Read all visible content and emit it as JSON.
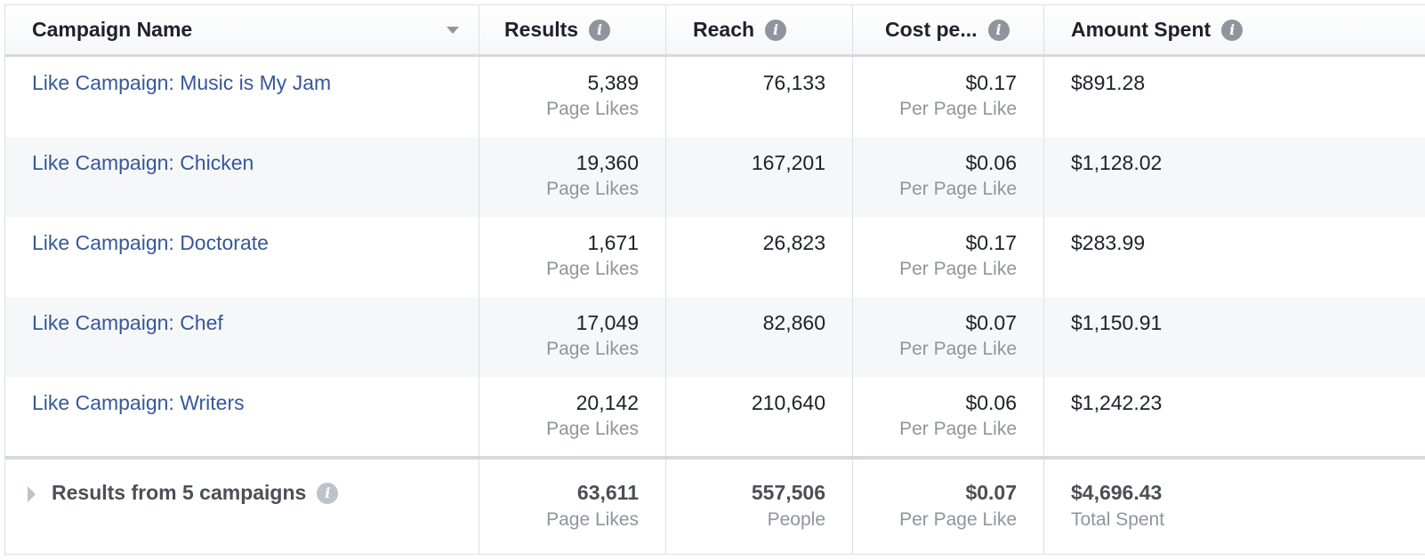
{
  "columns": {
    "campaign_name": "Campaign Name",
    "results": "Results",
    "reach": "Reach",
    "cost_per": "Cost pe...",
    "amount_spent": "Amount Spent"
  },
  "rows": [
    {
      "name": "Like Campaign: Music is My Jam",
      "results": "5,389",
      "results_unit": "Page Likes",
      "reach": "76,133",
      "cost": "$0.17",
      "cost_unit": "Per Page Like",
      "amount": "$891.28"
    },
    {
      "name": "Like Campaign: Chicken",
      "results": "19,360",
      "results_unit": "Page Likes",
      "reach": "167,201",
      "cost": "$0.06",
      "cost_unit": "Per Page Like",
      "amount": "$1,128.02"
    },
    {
      "name": "Like Campaign: Doctorate",
      "results": "1,671",
      "results_unit": "Page Likes",
      "reach": "26,823",
      "cost": "$0.17",
      "cost_unit": "Per Page Like",
      "amount": "$283.99"
    },
    {
      "name": "Like Campaign: Chef",
      "results": "17,049",
      "results_unit": "Page Likes",
      "reach": "82,860",
      "cost": "$0.07",
      "cost_unit": "Per Page Like",
      "amount": "$1,150.91"
    },
    {
      "name": "Like Campaign: Writers",
      "results": "20,142",
      "results_unit": "Page Likes",
      "reach": "210,640",
      "cost": "$0.06",
      "cost_unit": "Per Page Like",
      "amount": "$1,242.23"
    }
  ],
  "summary": {
    "label": "Results from 5 campaigns",
    "results": "63,611",
    "results_unit": "Page Likes",
    "reach": "557,506",
    "reach_unit": "People",
    "cost": "$0.07",
    "cost_unit": "Per Page Like",
    "amount": "$4,696.43",
    "amount_unit": "Total Spent"
  },
  "icons": {
    "info": "info-icon",
    "sort": "sort-down-icon",
    "expand": "expand-caret-icon"
  },
  "colors": {
    "link": "#365899",
    "text": "#1d2129",
    "muted": "#90949c",
    "alt_row": "#f6f7f9",
    "border": "#dddfe2"
  }
}
